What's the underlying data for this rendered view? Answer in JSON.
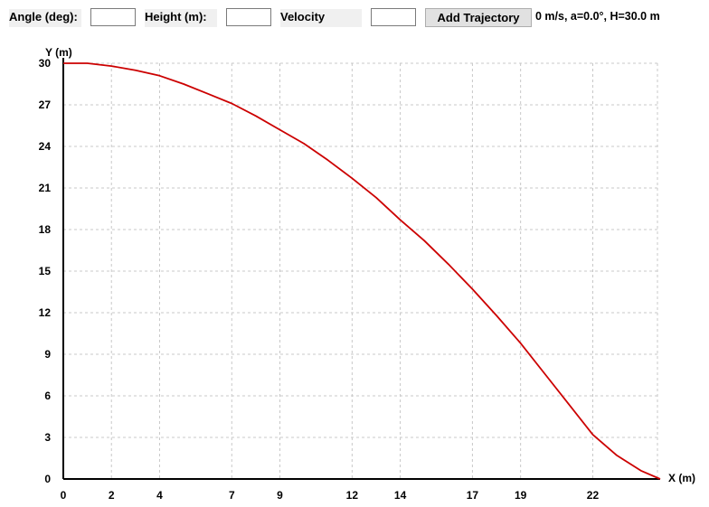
{
  "toolbar": {
    "angle_label": "Angle (deg):",
    "angle_value": "",
    "height_label": "Height (m):",
    "height_value": "",
    "velocity_label": "Velocity",
    "velocity_value": "",
    "add_button_label": "Add Trajectory",
    "status_text": "0 m/s, a=0.0°, H=30.0 m"
  },
  "chart_data": {
    "type": "line",
    "title": "",
    "xlabel": "X (m)",
    "ylabel": "Y (m)",
    "xlim": [
      0,
      24.8
    ],
    "ylim": [
      0,
      30
    ],
    "x_ticks": [
      0,
      2,
      4,
      7,
      9,
      12,
      14,
      17,
      19,
      22
    ],
    "x_tick_labels": [
      "0",
      "2",
      "4",
      "7",
      "9",
      "12",
      "14",
      "17",
      "19",
      "22"
    ],
    "y_ticks": [
      0,
      3,
      6,
      9,
      12,
      15,
      18,
      21,
      24,
      27,
      30
    ],
    "y_tick_labels": [
      "0",
      "3",
      "6",
      "9",
      "12",
      "15",
      "18",
      "21",
      "24",
      "27",
      "30"
    ],
    "grid": true,
    "series_color": "#cc0000",
    "series": [
      {
        "x": [
          0,
          1,
          2,
          3,
          4,
          5,
          6,
          7,
          8,
          9,
          10,
          11,
          12,
          13,
          14,
          15,
          16,
          17,
          18,
          19,
          20,
          21,
          22,
          23,
          24,
          24.8
        ],
        "y": [
          30.0,
          30.0,
          29.8,
          29.5,
          29.1,
          28.5,
          27.8,
          27.1,
          26.2,
          25.2,
          24.2,
          23.0,
          21.7,
          20.3,
          18.7,
          17.2,
          15.5,
          13.7,
          11.8,
          9.8,
          7.6,
          5.4,
          3.2,
          1.7,
          0.6,
          0.0
        ]
      }
    ]
  }
}
